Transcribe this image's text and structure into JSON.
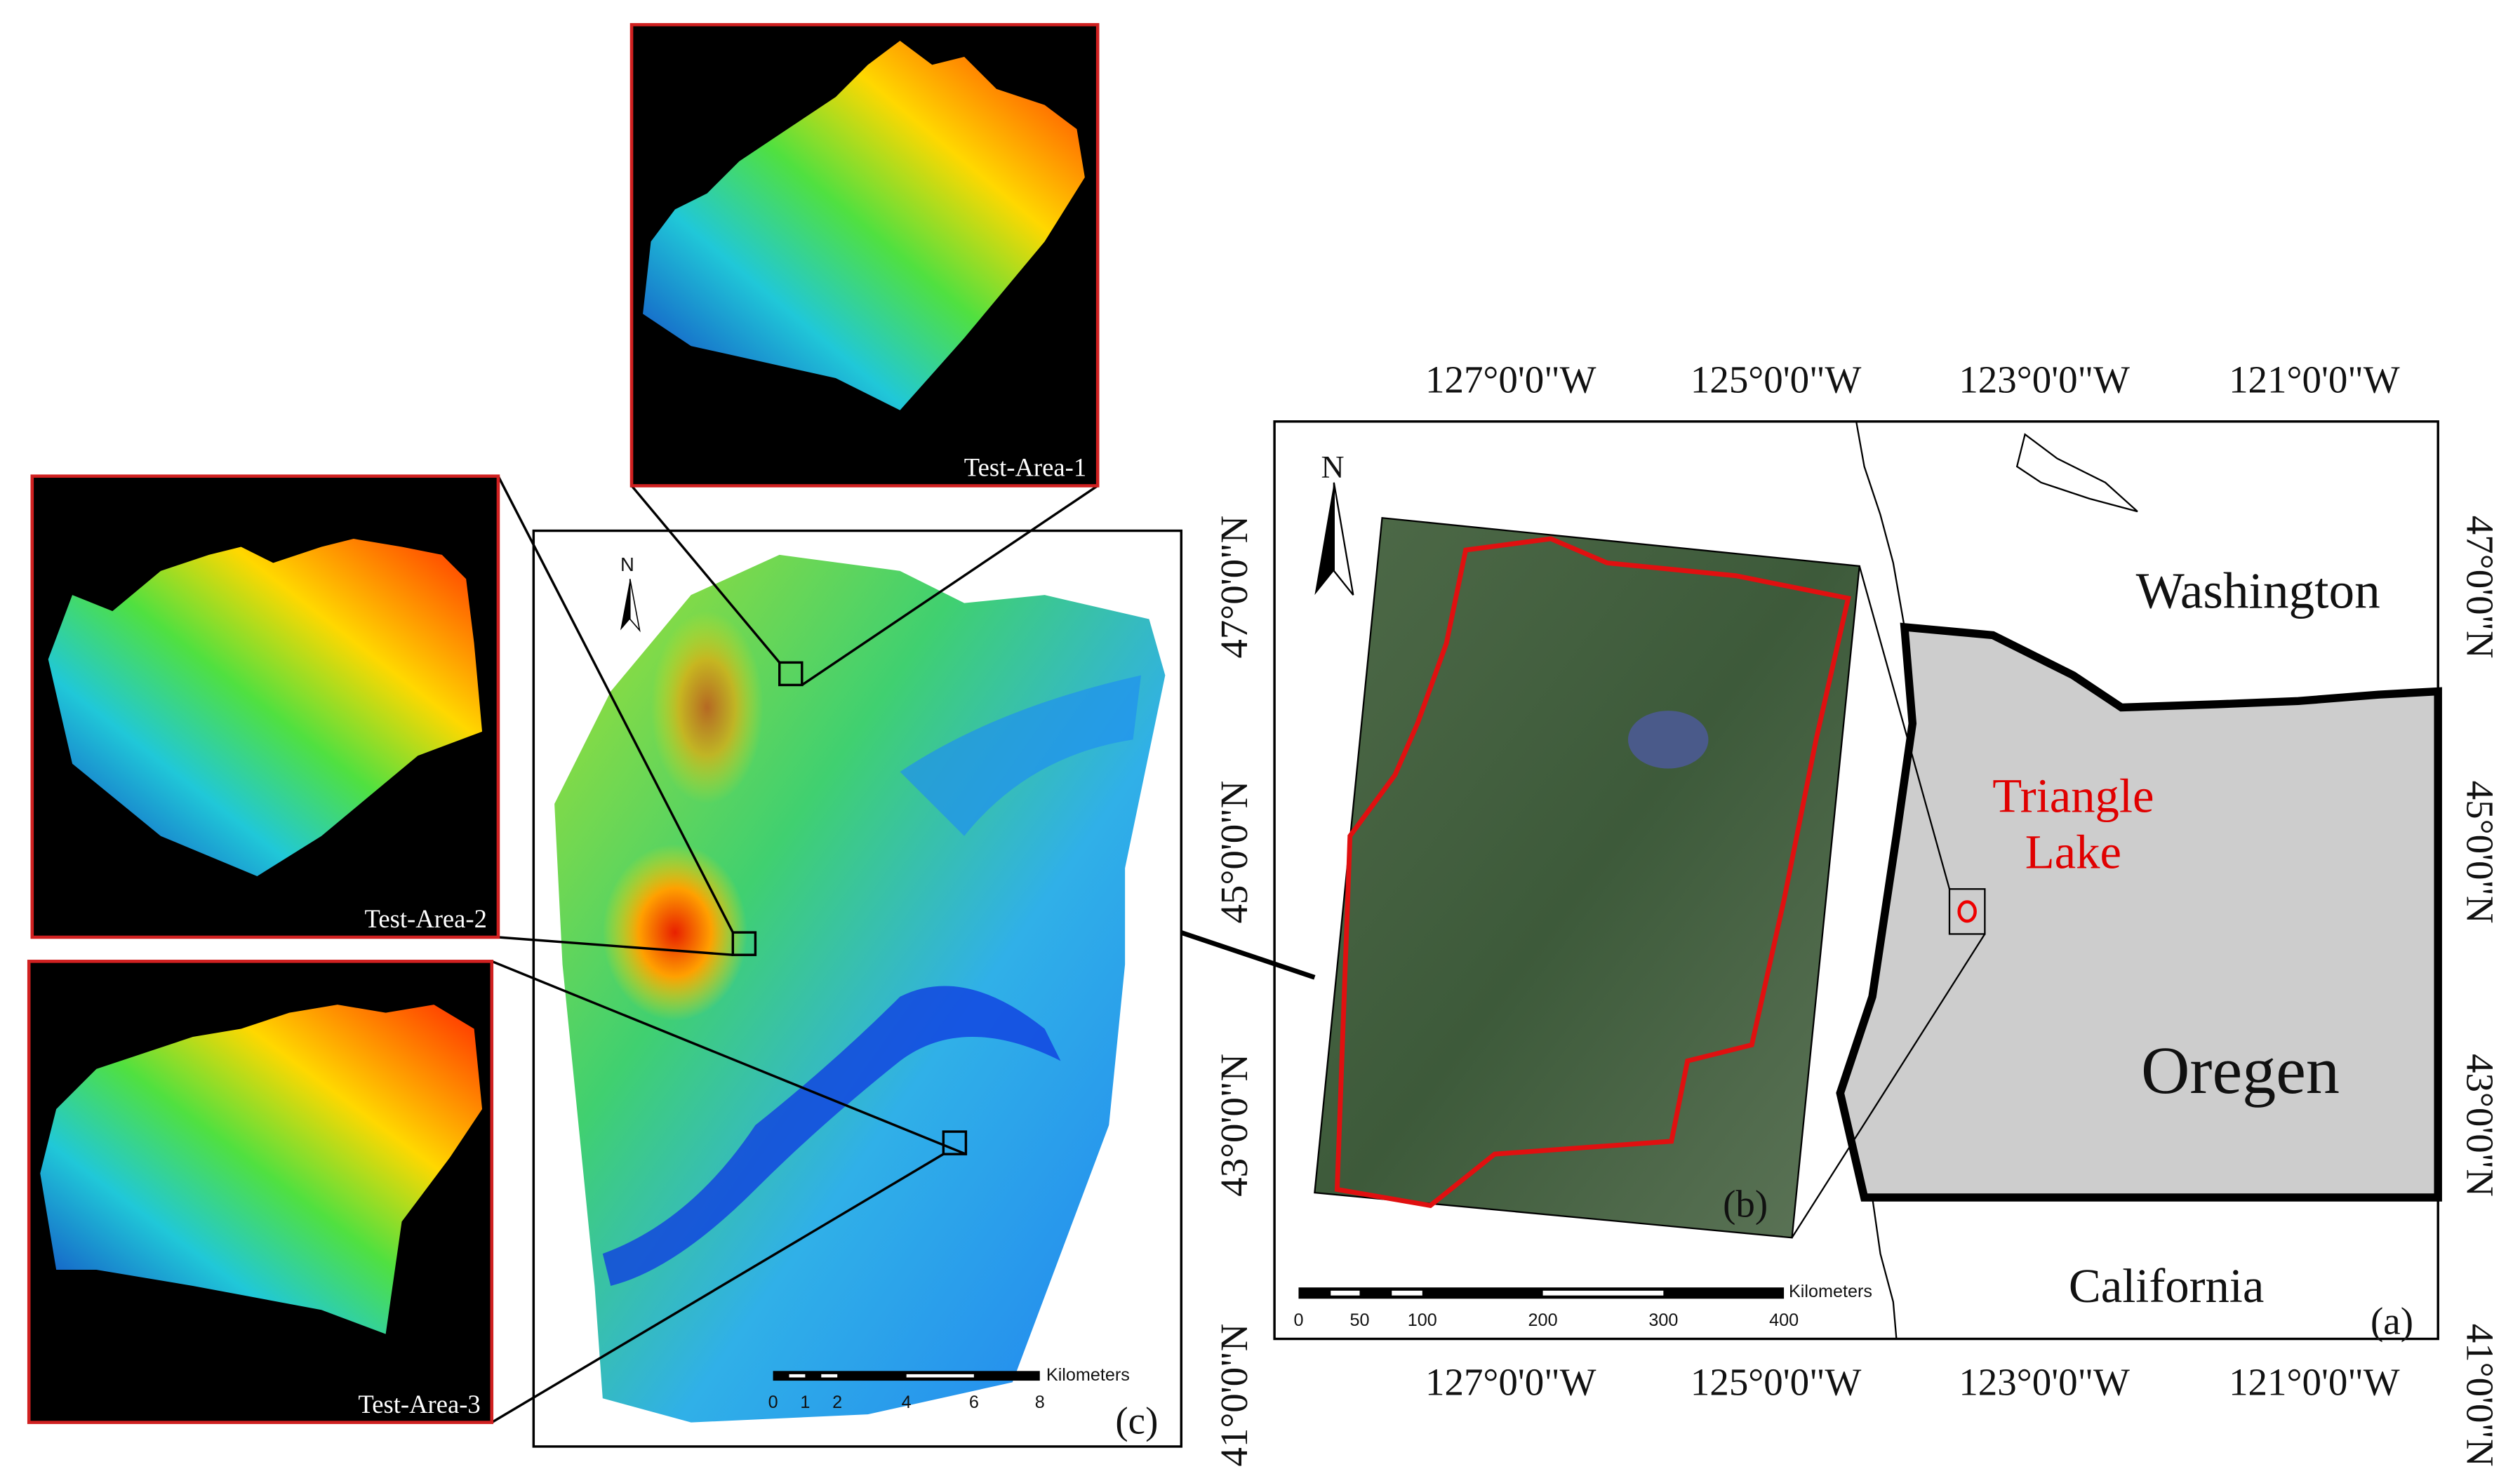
{
  "panel_a": {
    "label": "(a)",
    "top_longitudes": [
      "127°0'0\"W",
      "125°0'0\"W",
      "123°0'0\"W",
      "121°0'0\"W"
    ],
    "bottom_longitudes": [
      "127°0'0\"W",
      "125°0'0\"W",
      "123°0'0\"W",
      "121°0'0\"W"
    ],
    "left_latitudes": [
      "47°0'0\"N",
      "45°0'0\"N",
      "43°0'0\"N",
      "41°0'0\"N"
    ],
    "right_latitudes": [
      "47°0'0\"N",
      "45°0'0\"N",
      "43°0'0\"N",
      "41°0'0\"N"
    ],
    "states": [
      "Washington",
      "Oregen",
      "California"
    ],
    "site": [
      "Triangle",
      "Lake"
    ],
    "north": "N",
    "scale": {
      "unit": "Kilometers",
      "ticks": [
        0,
        50,
        100,
        200,
        300,
        400
      ]
    }
  },
  "panel_b": {
    "label": "(b)"
  },
  "panel_c": {
    "label": "(c)",
    "north": "N",
    "scale": {
      "unit": "Kilometers",
      "ticks": [
        0,
        1,
        2,
        4,
        6,
        8
      ]
    }
  },
  "test_areas": [
    "Test-Area-1",
    "Test-Area-2",
    "Test-Area-3"
  ]
}
